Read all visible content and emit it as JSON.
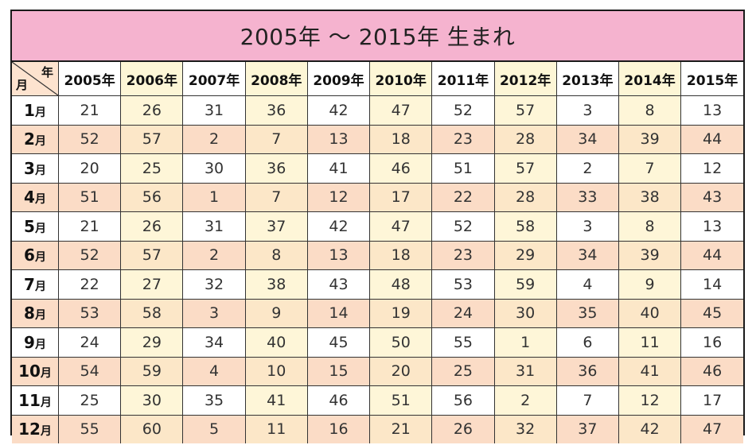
{
  "title": "2005年 ～ 2015年 生まれ",
  "corner": {
    "year_label": "年",
    "month_label": "月"
  },
  "years": [
    "2005年",
    "2006年",
    "2007年",
    "2008年",
    "2009年",
    "2010年",
    "2011年",
    "2012年",
    "2013年",
    "2014年",
    "2015年"
  ],
  "months": [
    {
      "num": "1",
      "unit": "月"
    },
    {
      "num": "2",
      "unit": "月"
    },
    {
      "num": "3",
      "unit": "月"
    },
    {
      "num": "4",
      "unit": "月"
    },
    {
      "num": "5",
      "unit": "月"
    },
    {
      "num": "6",
      "unit": "月"
    },
    {
      "num": "7",
      "unit": "月"
    },
    {
      "num": "8",
      "unit": "月"
    },
    {
      "num": "9",
      "unit": "月"
    },
    {
      "num": "10",
      "unit": "月"
    },
    {
      "num": "11",
      "unit": "月"
    },
    {
      "num": "12",
      "unit": "月"
    }
  ],
  "rows": [
    [
      "21",
      "26",
      "31",
      "36",
      "42",
      "47",
      "52",
      "57",
      "3",
      "8",
      "13"
    ],
    [
      "52",
      "57",
      "2",
      "7",
      "13",
      "18",
      "23",
      "28",
      "34",
      "39",
      "44"
    ],
    [
      "20",
      "25",
      "30",
      "36",
      "41",
      "46",
      "51",
      "57",
      "2",
      "7",
      "12"
    ],
    [
      "51",
      "56",
      "1",
      "7",
      "12",
      "17",
      "22",
      "28",
      "33",
      "38",
      "43"
    ],
    [
      "21",
      "26",
      "31",
      "37",
      "42",
      "47",
      "52",
      "58",
      "3",
      "8",
      "13"
    ],
    [
      "52",
      "57",
      "2",
      "8",
      "13",
      "18",
      "23",
      "29",
      "34",
      "39",
      "44"
    ],
    [
      "22",
      "27",
      "32",
      "38",
      "43",
      "48",
      "53",
      "59",
      "4",
      "9",
      "14"
    ],
    [
      "53",
      "58",
      "3",
      "9",
      "14",
      "19",
      "24",
      "30",
      "35",
      "40",
      "45"
    ],
    [
      "24",
      "29",
      "34",
      "40",
      "45",
      "50",
      "55",
      "1",
      "6",
      "11",
      "16"
    ],
    [
      "54",
      "59",
      "4",
      "10",
      "15",
      "20",
      "25",
      "31",
      "36",
      "41",
      "46"
    ],
    [
      "25",
      "30",
      "35",
      "41",
      "46",
      "51",
      "56",
      "2",
      "7",
      "12",
      "17"
    ],
    [
      "55",
      "60",
      "5",
      "11",
      "16",
      "21",
      "26",
      "32",
      "37",
      "42",
      "47"
    ]
  ],
  "colors": {
    "title_bg": "#f5b3cf",
    "row_even_bg": "#fbdcc6",
    "col_alt_bg": "#fef6d8"
  }
}
